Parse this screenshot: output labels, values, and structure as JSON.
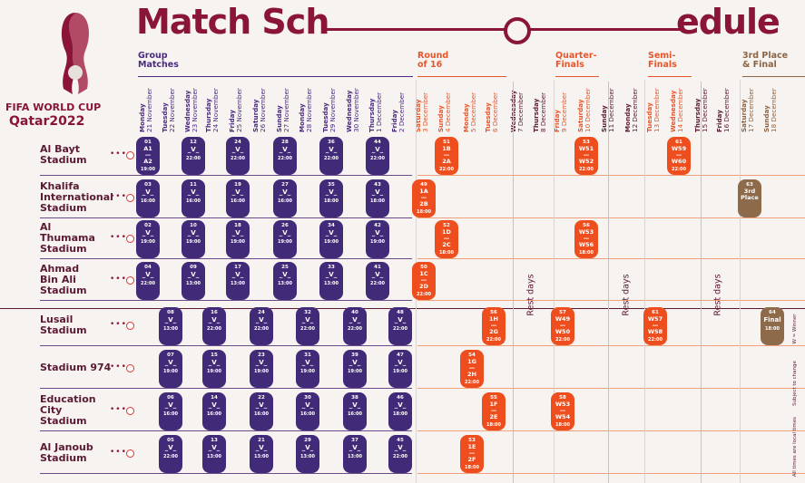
{
  "title_part1": "Match Sch",
  "title_part2": "edule",
  "logo": {
    "line1": "FIFA WORLD CUP",
    "line2": "Qatar2022"
  },
  "stages": [
    {
      "label": "Group\nMatches",
      "color": "purple"
    },
    {
      "label": "Round\nof 16",
      "color": "orange"
    },
    {
      "label": "Quarter-\nFinals",
      "color": "orange"
    },
    {
      "label": "Semi-\nFinals",
      "color": "orange"
    },
    {
      "label": "3rd Place\n& Final",
      "color": "brown"
    }
  ],
  "dates": [
    {
      "day": "Monday",
      "date": "21 November"
    },
    {
      "day": "Tuesday",
      "date": "22 November"
    },
    {
      "day": "Wednesday",
      "date": "23 November"
    },
    {
      "day": "Thursday",
      "date": "24 November"
    },
    {
      "day": "Friday",
      "date": "25 November"
    },
    {
      "day": "Saturday",
      "date": "26 November"
    },
    {
      "day": "Sunday",
      "date": "27 November"
    },
    {
      "day": "Monday",
      "date": "28 November"
    },
    {
      "day": "Tuesday",
      "date": "29 November"
    },
    {
      "day": "Wednesday",
      "date": "30 November"
    },
    {
      "day": "Thursday",
      "date": "1 December"
    },
    {
      "day": "Friday",
      "date": "2 December"
    },
    {
      "day": "Saturday",
      "date": "3 December"
    },
    {
      "day": "Sunday",
      "date": "4 December"
    },
    {
      "day": "Monday",
      "date": "5 December"
    },
    {
      "day": "Tuesday",
      "date": "6 December"
    },
    {
      "day": "Wednesday",
      "date": "7 December"
    },
    {
      "day": "Thursday",
      "date": "8 December"
    },
    {
      "day": "Friday",
      "date": "9 December"
    },
    {
      "day": "Saturday",
      "date": "10 December"
    },
    {
      "day": "Sunday",
      "date": "11 December"
    },
    {
      "day": "Monday",
      "date": "12 December"
    },
    {
      "day": "Tuesday",
      "date": "13 December"
    },
    {
      "day": "Wednesday",
      "date": "14 December"
    },
    {
      "day": "Thursday",
      "date": "15 December"
    },
    {
      "day": "Friday",
      "date": "16 December"
    },
    {
      "day": "Saturday",
      "date": "17 December"
    },
    {
      "day": "Sunday",
      "date": "18 December"
    }
  ],
  "stadiums": [
    "Al Bayt\nStadium",
    "Khalifa\nInternational\nStadium",
    "Al\nThumama\nStadium",
    "Ahmad\nBin Ali\nStadium",
    "Lusail\nStadium",
    "Stadium 974",
    "Education\nCity\nStadium",
    "Al Janoub\nStadium"
  ],
  "rest_days_label": "Rest days",
  "side_notes": [
    "W = Winner",
    "Subject to change",
    "All times are local times"
  ],
  "matches": [
    {
      "row": 0,
      "col": 0,
      "num": "01",
      "pair": "A1\n—\nA2",
      "time": "19:00",
      "kind": "purple"
    },
    {
      "row": 0,
      "col": 2,
      "num": "12",
      "pair": "_V_",
      "time": "22:00",
      "kind": "purple"
    },
    {
      "row": 0,
      "col": 4,
      "num": "24",
      "pair": "_V_",
      "time": "22:00",
      "kind": "purple"
    },
    {
      "row": 0,
      "col": 6,
      "num": "28",
      "pair": "_V_",
      "time": "22:00",
      "kind": "purple"
    },
    {
      "row": 0,
      "col": 8,
      "num": "36",
      "pair": "_V_",
      "time": "22:00",
      "kind": "purple"
    },
    {
      "row": 0,
      "col": 10,
      "num": "44",
      "pair": "_V_",
      "time": "22:00",
      "kind": "purple"
    },
    {
      "row": 0,
      "col": 13,
      "num": "51",
      "pair": "1B\n—\n2A",
      "time": "22:00",
      "kind": "orange"
    },
    {
      "row": 0,
      "col": 19,
      "num": "53",
      "pair": "W51\n—\nW52",
      "time": "22:00",
      "kind": "orange"
    },
    {
      "row": 0,
      "col": 23,
      "num": "61",
      "pair": "W59\n—\nW60",
      "time": "22:00",
      "kind": "orange"
    },
    {
      "row": 1,
      "col": 0,
      "num": "03",
      "pair": "_V_",
      "time": "16:00",
      "kind": "purple"
    },
    {
      "row": 1,
      "col": 2,
      "num": "11",
      "pair": "_V_",
      "time": "16:00",
      "kind": "purple"
    },
    {
      "row": 1,
      "col": 4,
      "num": "19",
      "pair": "_V_",
      "time": "16:00",
      "kind": "purple"
    },
    {
      "row": 1,
      "col": 6,
      "num": "27",
      "pair": "_V_",
      "time": "16:00",
      "kind": "purple"
    },
    {
      "row": 1,
      "col": 8,
      "num": "35",
      "pair": "_V_",
      "time": "18:00",
      "kind": "purple"
    },
    {
      "row": 1,
      "col": 10,
      "num": "43",
      "pair": "_V_",
      "time": "18:00",
      "kind": "purple"
    },
    {
      "row": 1,
      "col": 12,
      "num": "49",
      "pair": "1A\n—\n2B",
      "time": "18:00",
      "kind": "orange"
    },
    {
      "row": 1,
      "col": 26,
      "num": "63",
      "pair": "3rd\nPlace",
      "time": "",
      "kind": "brown"
    },
    {
      "row": 2,
      "col": 0,
      "num": "02",
      "pair": "_V_",
      "time": "19:00",
      "kind": "purple"
    },
    {
      "row": 2,
      "col": 2,
      "num": "10",
      "pair": "_V_",
      "time": "19:00",
      "kind": "purple"
    },
    {
      "row": 2,
      "col": 4,
      "num": "18",
      "pair": "_V_",
      "time": "19:00",
      "kind": "purple"
    },
    {
      "row": 2,
      "col": 6,
      "num": "26",
      "pair": "_V_",
      "time": "19:00",
      "kind": "purple"
    },
    {
      "row": 2,
      "col": 8,
      "num": "34",
      "pair": "_V_",
      "time": "19:00",
      "kind": "purple"
    },
    {
      "row": 2,
      "col": 10,
      "num": "42",
      "pair": "_V_",
      "time": "19:00",
      "kind": "purple"
    },
    {
      "row": 2,
      "col": 13,
      "num": "52",
      "pair": "1D\n—\n2C",
      "time": "18:00",
      "kind": "orange"
    },
    {
      "row": 2,
      "col": 19,
      "num": "56",
      "pair": "W53\n—\nW56",
      "time": "18:00",
      "kind": "orange"
    },
    {
      "row": 3,
      "col": 0,
      "num": "04",
      "pair": "_V_",
      "time": "22:00",
      "kind": "purple"
    },
    {
      "row": 3,
      "col": 2,
      "num": "09",
      "pair": "_V_",
      "time": "13:00",
      "kind": "purple"
    },
    {
      "row": 3,
      "col": 4,
      "num": "17",
      "pair": "_V_",
      "time": "13:00",
      "kind": "purple"
    },
    {
      "row": 3,
      "col": 6,
      "num": "25",
      "pair": "_V_",
      "time": "13:00",
      "kind": "purple"
    },
    {
      "row": 3,
      "col": 8,
      "num": "33",
      "pair": "_V_",
      "time": "13:00",
      "kind": "purple"
    },
    {
      "row": 3,
      "col": 10,
      "num": "41",
      "pair": "_V_",
      "time": "22:00",
      "kind": "purple"
    },
    {
      "row": 3,
      "col": 12,
      "num": "50",
      "pair": "1C\n—\n2D",
      "time": "22:00",
      "kind": "orange"
    },
    {
      "row": 4,
      "col": 1,
      "num": "08",
      "pair": "_V_",
      "time": "13:00",
      "kind": "purple"
    },
    {
      "row": 4,
      "col": 3,
      "num": "16",
      "pair": "_V_",
      "time": "22:00",
      "kind": "purple"
    },
    {
      "row": 4,
      "col": 5,
      "num": "24",
      "pair": "_V_",
      "time": "22:00",
      "kind": "purple"
    },
    {
      "row": 4,
      "col": 7,
      "num": "32",
      "pair": "_V_",
      "time": "22:00",
      "kind": "purple"
    },
    {
      "row": 4,
      "col": 9,
      "num": "40",
      "pair": "_V_",
      "time": "22:00",
      "kind": "purple"
    },
    {
      "row": 4,
      "col": 11,
      "num": "48",
      "pair": "_V_",
      "time": "22:00",
      "kind": "purple"
    },
    {
      "row": 4,
      "col": 15,
      "num": "56",
      "pair": "1H\n—\n2G",
      "time": "22:00",
      "kind": "orange"
    },
    {
      "row": 4,
      "col": 18,
      "num": "57",
      "pair": "W49\n—\nW50",
      "time": "22:00",
      "kind": "orange"
    },
    {
      "row": 4,
      "col": 22,
      "num": "61",
      "pair": "W57\n—\nW58",
      "time": "22:00",
      "kind": "orange"
    },
    {
      "row": 4,
      "col": 27,
      "num": "64",
      "pair": "Final",
      "time": "18:00",
      "kind": "brown"
    },
    {
      "row": 5,
      "col": 1,
      "num": "07",
      "pair": "_V_",
      "time": "19:00",
      "kind": "purple"
    },
    {
      "row": 5,
      "col": 3,
      "num": "15",
      "pair": "_V_",
      "time": "19:00",
      "kind": "purple"
    },
    {
      "row": 5,
      "col": 5,
      "num": "23",
      "pair": "_V_",
      "time": "19:00",
      "kind": "purple"
    },
    {
      "row": 5,
      "col": 7,
      "num": "31",
      "pair": "_V_",
      "time": "19:00",
      "kind": "purple"
    },
    {
      "row": 5,
      "col": 9,
      "num": "39",
      "pair": "_V_",
      "time": "19:00",
      "kind": "purple"
    },
    {
      "row": 5,
      "col": 11,
      "num": "47",
      "pair": "_V_",
      "time": "19:00",
      "kind": "purple"
    },
    {
      "row": 5,
      "col": 14,
      "num": "54",
      "pair": "1G\n—\n2H",
      "time": "22:00",
      "kind": "orange"
    },
    {
      "row": 6,
      "col": 1,
      "num": "06",
      "pair": "_V_",
      "time": "16:00",
      "kind": "purple"
    },
    {
      "row": 6,
      "col": 3,
      "num": "14",
      "pair": "_V_",
      "time": "16:00",
      "kind": "purple"
    },
    {
      "row": 6,
      "col": 5,
      "num": "22",
      "pair": "_V_",
      "time": "16:00",
      "kind": "purple"
    },
    {
      "row": 6,
      "col": 7,
      "num": "30",
      "pair": "_V_",
      "time": "16:00",
      "kind": "purple"
    },
    {
      "row": 6,
      "col": 9,
      "num": "38",
      "pair": "_V_",
      "time": "16:00",
      "kind": "purple"
    },
    {
      "row": 6,
      "col": 11,
      "num": "46",
      "pair": "_V_",
      "time": "18:00",
      "kind": "purple"
    },
    {
      "row": 6,
      "col": 15,
      "num": "55",
      "pair": "1F\n—\n2E",
      "time": "18:00",
      "kind": "orange"
    },
    {
      "row": 6,
      "col": 18,
      "num": "58",
      "pair": "W53\n—\nW54",
      "time": "18:00",
      "kind": "orange"
    },
    {
      "row": 7,
      "col": 1,
      "num": "05",
      "pair": "_V_",
      "time": "22:00",
      "kind": "purple"
    },
    {
      "row": 7,
      "col": 3,
      "num": "13",
      "pair": "_V_",
      "time": "13:00",
      "kind": "purple"
    },
    {
      "row": 7,
      "col": 5,
      "num": "21",
      "pair": "_V_",
      "time": "13:00",
      "kind": "purple"
    },
    {
      "row": 7,
      "col": 7,
      "num": "29",
      "pair": "_V_",
      "time": "13:00",
      "kind": "purple"
    },
    {
      "row": 7,
      "col": 9,
      "num": "37",
      "pair": "_V_",
      "time": "13:00",
      "kind": "purple"
    },
    {
      "row": 7,
      "col": 11,
      "num": "45",
      "pair": "_V_",
      "time": "22:00",
      "kind": "purple"
    },
    {
      "row": 7,
      "col": 14,
      "num": "53",
      "pair": "1E\n—\n2F",
      "time": "18:00",
      "kind": "orange"
    }
  ]
}
